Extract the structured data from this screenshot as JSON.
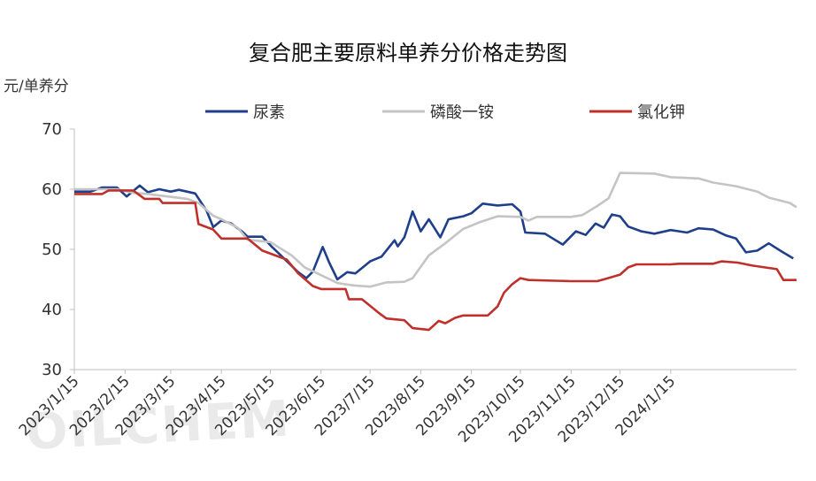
{
  "chart_data": {
    "type": "line",
    "title": "复合肥主要原料单养分价格走势图",
    "ylabel": "元/单养分",
    "ylim": [
      30,
      70
    ],
    "yticks": [
      30,
      40,
      50,
      60,
      70
    ],
    "grid": false,
    "legend_position": "top",
    "watermark": "OILCHEM",
    "x_labels": [
      "2023/1/15",
      "2023/2/15",
      "2023/3/15",
      "2023/4/15",
      "2023/5/15",
      "2023/6/15",
      "2023/7/15",
      "2023/8/15",
      "2023/9/15",
      "2023/10/15",
      "2023/11/15",
      "2023/12/15",
      "2024/1/15"
    ],
    "series": [
      {
        "name": "尿素",
        "color": "#1f3f8a",
        "points": [
          [
            "2023-01-15",
            59.6
          ],
          [
            "2023-01-25",
            59.6
          ],
          [
            "2023-02-01",
            60.3
          ],
          [
            "2023-02-10",
            60.3
          ],
          [
            "2023-02-16",
            58.8
          ],
          [
            "2023-02-24",
            60.6
          ],
          [
            "2023-03-01",
            59.5
          ],
          [
            "2023-03-08",
            60.0
          ],
          [
            "2023-03-15",
            59.6
          ],
          [
            "2023-03-20",
            59.9
          ],
          [
            "2023-03-30",
            59.3
          ],
          [
            "2023-04-06",
            56.4
          ],
          [
            "2023-04-10",
            53.7
          ],
          [
            "2023-04-15",
            54.8
          ],
          [
            "2023-04-21",
            54.3
          ],
          [
            "2023-04-28",
            52.9
          ],
          [
            "2023-05-01",
            52.1
          ],
          [
            "2023-05-10",
            52.1
          ],
          [
            "2023-05-16",
            50.4
          ],
          [
            "2023-05-24",
            48.3
          ],
          [
            "2023-06-01",
            46.2
          ],
          [
            "2023-06-06",
            45.2
          ],
          [
            "2023-06-10",
            46.3
          ],
          [
            "2023-06-16",
            50.4
          ],
          [
            "2023-06-20",
            47.8
          ],
          [
            "2023-06-25",
            45.0
          ],
          [
            "2023-07-01",
            46.2
          ],
          [
            "2023-07-06",
            46.0
          ],
          [
            "2023-07-15",
            48.0
          ],
          [
            "2023-07-22",
            48.8
          ],
          [
            "2023-07-30",
            51.5
          ],
          [
            "2023-08-01",
            50.5
          ],
          [
            "2023-08-05",
            52.0
          ],
          [
            "2023-08-10",
            56.3
          ],
          [
            "2023-08-15",
            53.0
          ],
          [
            "2023-08-20",
            55.0
          ],
          [
            "2023-08-27",
            52.0
          ],
          [
            "2023-09-01",
            55.0
          ],
          [
            "2023-09-10",
            55.5
          ],
          [
            "2023-09-15",
            56.0
          ],
          [
            "2023-09-22",
            57.6
          ],
          [
            "2023-10-01",
            57.3
          ],
          [
            "2023-10-10",
            57.5
          ],
          [
            "2023-10-15",
            56.3
          ],
          [
            "2023-10-18",
            52.8
          ],
          [
            "2023-10-30",
            52.6
          ],
          [
            "2023-11-10",
            50.8
          ],
          [
            "2023-11-18",
            53.0
          ],
          [
            "2023-11-24",
            52.4
          ],
          [
            "2023-11-30",
            54.3
          ],
          [
            "2023-12-05",
            53.6
          ],
          [
            "2023-12-10",
            55.8
          ],
          [
            "2023-12-15",
            55.5
          ],
          [
            "2023-12-20",
            53.8
          ],
          [
            "2023-12-28",
            53.0
          ],
          [
            "2024-01-05",
            52.6
          ],
          [
            "2024-01-15",
            53.2
          ],
          [
            "2024-01-25",
            52.8
          ],
          [
            "2024-02-01",
            53.5
          ],
          [
            "2024-02-10",
            53.3
          ],
          [
            "2024-02-18",
            52.3
          ],
          [
            "2024-02-24",
            51.8
          ],
          [
            "2024-03-01",
            49.5
          ],
          [
            "2024-03-08",
            49.8
          ],
          [
            "2024-03-15",
            51.0
          ],
          [
            "2024-03-22",
            49.8
          ],
          [
            "2024-03-30",
            48.5
          ]
        ]
      },
      {
        "name": "磷酸一铵",
        "color": "#c4c4c4",
        "points": [
          [
            "2023-01-15",
            60.0
          ],
          [
            "2023-02-10",
            60.0
          ],
          [
            "2023-02-20",
            59.4
          ],
          [
            "2023-03-01",
            59.2
          ],
          [
            "2023-03-25",
            58.4
          ],
          [
            "2023-04-01",
            57.7
          ],
          [
            "2023-04-10",
            55.6
          ],
          [
            "2023-04-15",
            55.0
          ],
          [
            "2023-04-25",
            53.6
          ],
          [
            "2023-05-01",
            51.6
          ],
          [
            "2023-05-15",
            51.2
          ],
          [
            "2023-05-28",
            49.0
          ],
          [
            "2023-06-05",
            47.0
          ],
          [
            "2023-06-15",
            45.7
          ],
          [
            "2023-06-25",
            44.4
          ],
          [
            "2023-07-05",
            44.0
          ],
          [
            "2023-07-15",
            43.8
          ],
          [
            "2023-07-25",
            44.5
          ],
          [
            "2023-08-05",
            44.6
          ],
          [
            "2023-08-10",
            45.2
          ],
          [
            "2023-08-20",
            49.0
          ],
          [
            "2023-08-30",
            51.0
          ],
          [
            "2023-09-10",
            53.4
          ],
          [
            "2023-09-20",
            54.5
          ],
          [
            "2023-10-01",
            55.5
          ],
          [
            "2023-10-15",
            55.4
          ],
          [
            "2023-10-20",
            54.8
          ],
          [
            "2023-10-25",
            55.4
          ],
          [
            "2023-11-15",
            55.4
          ],
          [
            "2023-11-22",
            55.7
          ],
          [
            "2023-12-01",
            57.2
          ],
          [
            "2023-12-08",
            58.5
          ],
          [
            "2023-12-15",
            62.7
          ],
          [
            "2024-01-05",
            62.6
          ],
          [
            "2024-01-15",
            62.0
          ],
          [
            "2024-02-01",
            61.8
          ],
          [
            "2024-02-10",
            61.1
          ],
          [
            "2024-02-24",
            60.5
          ],
          [
            "2024-03-08",
            59.6
          ],
          [
            "2024-03-15",
            58.6
          ],
          [
            "2024-03-28",
            57.7
          ],
          [
            "2024-04-01",
            57.0
          ]
        ]
      },
      {
        "name": "氯化钾",
        "color": "#c0302b",
        "points": [
          [
            "2023-01-15",
            59.2
          ],
          [
            "2023-02-01",
            59.2
          ],
          [
            "2023-02-05",
            59.8
          ],
          [
            "2023-02-20",
            59.8
          ],
          [
            "2023-02-27",
            58.4
          ],
          [
            "2023-03-08",
            58.4
          ],
          [
            "2023-03-10",
            57.7
          ],
          [
            "2023-03-30",
            57.7
          ],
          [
            "2023-04-01",
            54.2
          ],
          [
            "2023-04-10",
            53.3
          ],
          [
            "2023-04-15",
            51.8
          ],
          [
            "2023-05-01",
            51.8
          ],
          [
            "2023-05-10",
            49.8
          ],
          [
            "2023-05-25",
            48.3
          ],
          [
            "2023-06-01",
            46.0
          ],
          [
            "2023-06-10",
            43.9
          ],
          [
            "2023-06-15",
            43.4
          ],
          [
            "2023-06-30",
            43.4
          ],
          [
            "2023-07-02",
            41.7
          ],
          [
            "2023-07-10",
            41.7
          ],
          [
            "2023-07-20",
            39.5
          ],
          [
            "2023-07-25",
            38.5
          ],
          [
            "2023-08-05",
            38.2
          ],
          [
            "2023-08-10",
            36.9
          ],
          [
            "2023-08-20",
            36.6
          ],
          [
            "2023-08-26",
            38.1
          ],
          [
            "2023-08-30",
            37.7
          ],
          [
            "2023-09-05",
            38.6
          ],
          [
            "2023-09-10",
            39.0
          ],
          [
            "2023-09-25",
            39.0
          ],
          [
            "2023-10-01",
            40.5
          ],
          [
            "2023-10-05",
            42.8
          ],
          [
            "2023-10-10",
            44.2
          ],
          [
            "2023-10-15",
            45.2
          ],
          [
            "2023-10-20",
            44.9
          ],
          [
            "2023-11-15",
            44.7
          ],
          [
            "2023-12-01",
            44.7
          ],
          [
            "2023-12-05",
            45.0
          ],
          [
            "2023-12-15",
            45.8
          ],
          [
            "2023-12-20",
            47.0
          ],
          [
            "2023-12-25",
            47.5
          ],
          [
            "2024-01-15",
            47.5
          ],
          [
            "2024-01-20",
            47.6
          ],
          [
            "2024-02-10",
            47.6
          ],
          [
            "2024-02-15",
            48.0
          ],
          [
            "2024-02-25",
            47.8
          ],
          [
            "2024-03-05",
            47.3
          ],
          [
            "2024-03-20",
            46.7
          ],
          [
            "2024-03-24",
            44.9
          ],
          [
            "2024-04-01",
            44.9
          ]
        ]
      }
    ]
  }
}
